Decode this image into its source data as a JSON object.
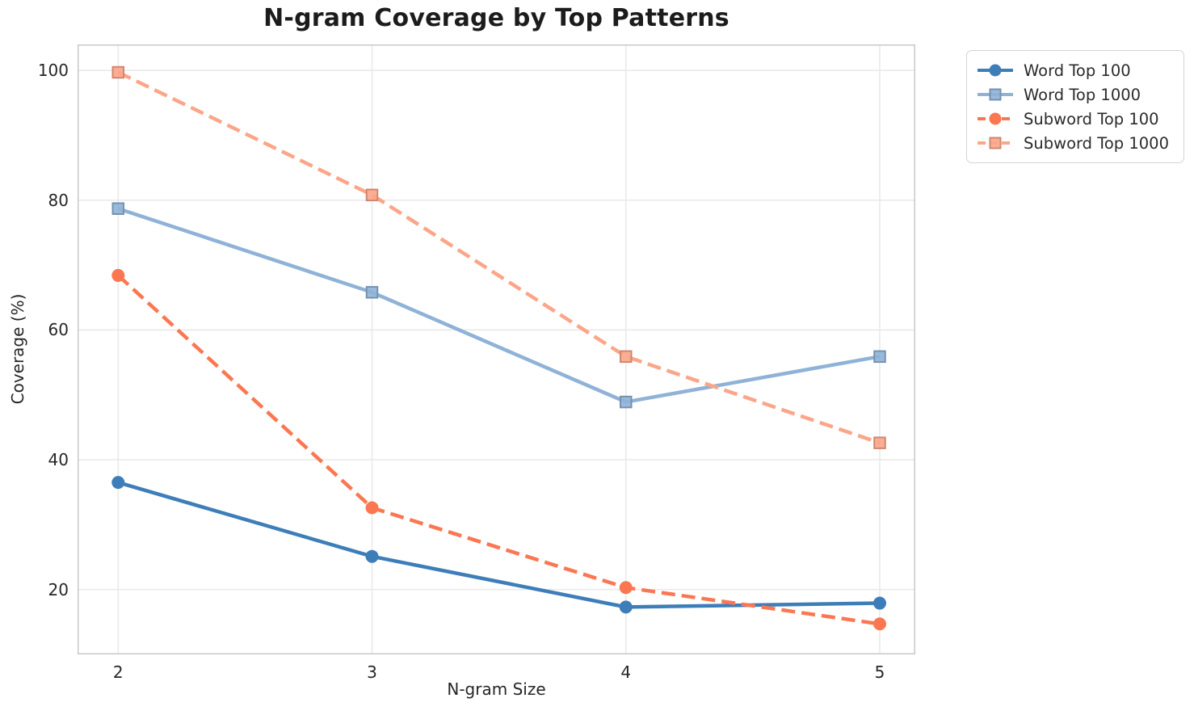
{
  "title": "N-gram Coverage by Top Patterns",
  "chart_data": {
    "type": "line",
    "title": "N-gram Coverage by Top Patterns",
    "xlabel": "N-gram Size",
    "ylabel": "Coverage (%)",
    "x": [
      2,
      3,
      4,
      5
    ],
    "xticks": [
      "2",
      "3",
      "4",
      "5"
    ],
    "yticks": [
      20,
      40,
      60,
      80,
      100
    ],
    "xlim": [
      1.84,
      5.14
    ],
    "ylim": [
      10,
      104
    ],
    "grid": true,
    "grid_color": "#e8e8e8",
    "frame_color": "#c9c9c9",
    "legend_position": "outside-right-top",
    "series": [
      {
        "name": "Word Top 100",
        "values": [
          36.5,
          25.1,
          17.3,
          17.9
        ],
        "color": "#3D7EB9",
        "line_style": "solid",
        "marker": "circle"
      },
      {
        "name": "Word Top 1000",
        "values": [
          78.7,
          65.8,
          48.9,
          55.9
        ],
        "color": "#8FB2D7",
        "line_style": "solid",
        "marker": "square"
      },
      {
        "name": "Subword Top 100",
        "values": [
          68.4,
          32.6,
          20.3,
          14.7
        ],
        "color": "#FB7752",
        "line_style": "dashed",
        "marker": "circle"
      },
      {
        "name": "Subword Top 1000",
        "values": [
          99.7,
          80.8,
          55.9,
          42.6
        ],
        "color": "#FCA588",
        "line_style": "dashed",
        "marker": "square"
      }
    ]
  }
}
